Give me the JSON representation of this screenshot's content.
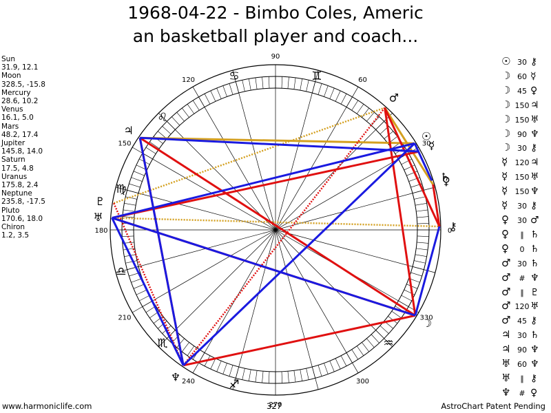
{
  "title": {
    "line1": "1968-04-22 - Bimbo Coles, Americ",
    "line2": "an basketball player and coach..."
  },
  "planets": [
    {
      "name": "Sun",
      "pos": "31.9, 12.1"
    },
    {
      "name": "Moon",
      "pos": "328.5, -15.8"
    },
    {
      "name": "Mercury",
      "pos": "28.6, 10.2"
    },
    {
      "name": "Venus",
      "pos": "16.1, 5.0"
    },
    {
      "name": "Mars",
      "pos": "48.2, 17.4"
    },
    {
      "name": "Jupiter",
      "pos": "145.8, 14.0"
    },
    {
      "name": "Saturn",
      "pos": "17.5, 4.8"
    },
    {
      "name": "Uranus",
      "pos": "175.8, 2.4"
    },
    {
      "name": "Neptune",
      "pos": "235.8, -17.5"
    },
    {
      "name": "Pluto",
      "pos": "170.6, 18.0"
    },
    {
      "name": "Chiron",
      "pos": "1.2, 3.5"
    }
  ],
  "aspects": [
    {
      "p1": "☉",
      "angle": "30",
      "p2": "⚷"
    },
    {
      "p1": "☽",
      "angle": "60",
      "p2": "☿"
    },
    {
      "p1": "☽",
      "angle": "45",
      "p2": "♀"
    },
    {
      "p1": "☽",
      "angle": "150",
      "p2": "♃"
    },
    {
      "p1": "☽",
      "angle": "150",
      "p2": "♅"
    },
    {
      "p1": "☽",
      "angle": "90",
      "p2": "♆"
    },
    {
      "p1": "☽",
      "angle": "30",
      "p2": "⚷"
    },
    {
      "p1": "☿",
      "angle": "120",
      "p2": "♃"
    },
    {
      "p1": "☿",
      "angle": "150",
      "p2": "♅"
    },
    {
      "p1": "☿",
      "angle": "150",
      "p2": "♆"
    },
    {
      "p1": "☿",
      "angle": "30",
      "p2": "⚷"
    },
    {
      "p1": "♀",
      "angle": "30",
      "p2": "♂"
    },
    {
      "p1": "♀",
      "angle": "∥",
      "p2": "♄"
    },
    {
      "p1": "♀",
      "angle": "0",
      "p2": "♄"
    },
    {
      "p1": "♂",
      "angle": "30",
      "p2": "♄"
    },
    {
      "p1": "♂",
      "angle": "#",
      "p2": "♆"
    },
    {
      "p1": "♂",
      "angle": "∥",
      "p2": "♇"
    },
    {
      "p1": "♂",
      "angle": "120",
      "p2": "♅"
    },
    {
      "p1": "♂",
      "angle": "45",
      "p2": "⚷"
    },
    {
      "p1": "♃",
      "angle": "30",
      "p2": "♄"
    },
    {
      "p1": "♃",
      "angle": "90",
      "p2": "♆"
    },
    {
      "p1": "♅",
      "angle": "60",
      "p2": "♆"
    },
    {
      "p1": "♅",
      "angle": "∥",
      "p2": "⚷"
    },
    {
      "p1": "♆",
      "angle": "#",
      "p2": "♀"
    }
  ],
  "wheel": {
    "degree_labels": [
      {
        "deg": 0,
        "text": "0"
      },
      {
        "deg": 30,
        "text": "30"
      },
      {
        "deg": 60,
        "text": "60"
      },
      {
        "deg": 90,
        "text": "90"
      },
      {
        "deg": 120,
        "text": "120"
      },
      {
        "deg": 150,
        "text": "150"
      },
      {
        "deg": 180,
        "text": "180"
      },
      {
        "deg": 210,
        "text": "210"
      },
      {
        "deg": 240,
        "text": "240"
      },
      {
        "deg": 270,
        "text": "270"
      },
      {
        "deg": 300,
        "text": "300"
      },
      {
        "deg": 330,
        "text": "330"
      }
    ],
    "signs": [
      {
        "deg": 75,
        "glyph": "♊"
      },
      {
        "deg": 105,
        "glyph": "♋"
      },
      {
        "deg": 135,
        "glyph": "♌"
      },
      {
        "deg": 165,
        "glyph": "♍"
      },
      {
        "deg": 195,
        "glyph": "♎"
      },
      {
        "deg": 225,
        "glyph": "♏"
      },
      {
        "deg": 255,
        "glyph": "♐"
      },
      {
        "deg": 315,
        "glyph": "♒"
      }
    ],
    "bodies": [
      {
        "name": "Sun",
        "glyph": "☉",
        "deg": 31.9,
        "color": "#000000"
      },
      {
        "name": "Moon",
        "glyph": "☽",
        "deg": 328.5,
        "color": "#000000"
      },
      {
        "name": "Mercury",
        "glyph": "☿",
        "deg": 28.6,
        "color": "#000000"
      },
      {
        "name": "Venus",
        "glyph": "♀",
        "deg": 16.1,
        "color": "#000000"
      },
      {
        "name": "Mars",
        "glyph": "♂",
        "deg": 48.2,
        "color": "#000000"
      },
      {
        "name": "Jupiter",
        "glyph": "♃",
        "deg": 145.8,
        "color": "#000000"
      },
      {
        "name": "Saturn",
        "glyph": "♄",
        "deg": 17.5,
        "color": "#000000"
      },
      {
        "name": "Uranus",
        "glyph": "♅",
        "deg": 175.8,
        "color": "#000000"
      },
      {
        "name": "Neptune",
        "glyph": "♆",
        "deg": 235.8,
        "color": "#000000"
      },
      {
        "name": "Pluto",
        "glyph": "♇",
        "deg": 170.6,
        "color": "#000000"
      },
      {
        "name": "Chiron",
        "glyph": "⚷",
        "deg": 1.2,
        "color": "#000000"
      }
    ],
    "aspect_lines": [
      {
        "from": "Mars",
        "to": "Venus",
        "color": "#d4a020",
        "style": "solid"
      },
      {
        "from": "Jupiter",
        "to": "Sun",
        "color": "#d4a020",
        "style": "solid"
      },
      {
        "from": "Pluto",
        "to": "Mars",
        "color": "#d4a020",
        "style": "dotted"
      },
      {
        "from": "Uranus",
        "to": "Chiron",
        "color": "#d4a020",
        "style": "dotted"
      },
      {
        "from": "Mars",
        "to": "Moon",
        "color": "#e01010",
        "style": "solid"
      },
      {
        "from": "Mars",
        "to": "Chiron",
        "color": "#e01010",
        "style": "solid"
      },
      {
        "from": "Mars",
        "to": "Neptune",
        "color": "#e01010",
        "style": "dotted"
      },
      {
        "from": "Jupiter",
        "to": "Moon",
        "color": "#e01010",
        "style": "solid"
      },
      {
        "from": "Jupiter",
        "to": "Neptune",
        "color": "#e01010",
        "style": "solid"
      },
      {
        "from": "Uranus",
        "to": "Mercury",
        "color": "#e01010",
        "style": "solid"
      },
      {
        "from": "Moon",
        "to": "Neptune",
        "color": "#e01010",
        "style": "solid"
      },
      {
        "from": "Moon",
        "to": "Uranus",
        "color": "#e01010",
        "style": "solid"
      },
      {
        "from": "Chiron",
        "to": "Venus",
        "color": "#e01010",
        "style": "solid"
      },
      {
        "from": "Pluto",
        "to": "Neptune",
        "color": "#e01010",
        "style": "dotted"
      },
      {
        "from": "Jupiter",
        "to": "Mercury",
        "color": "#1a1ae0",
        "style": "solid"
      },
      {
        "from": "Uranus",
        "to": "Sun",
        "color": "#1a1ae0",
        "style": "solid"
      },
      {
        "from": "Uranus",
        "to": "Neptune",
        "color": "#1a1ae0",
        "style": "solid"
      },
      {
        "from": "Uranus",
        "to": "Moon",
        "color": "#1a1ae0",
        "style": "solid"
      },
      {
        "from": "Neptune",
        "to": "Sun",
        "color": "#1a1ae0",
        "style": "solid"
      },
      {
        "from": "Jupiter",
        "to": "Neptune",
        "color": "#1a1ae0",
        "style": "solid"
      },
      {
        "from": "Moon",
        "to": "Chiron",
        "color": "#1a1ae0",
        "style": "solid"
      },
      {
        "from": "Sun",
        "to": "Saturn",
        "color": "#1a1ae0",
        "style": "solid"
      }
    ]
  },
  "footer": {
    "left": "www.harmoniclife.com",
    "mid": "327",
    "right": "AstroChart Patent Pending"
  }
}
